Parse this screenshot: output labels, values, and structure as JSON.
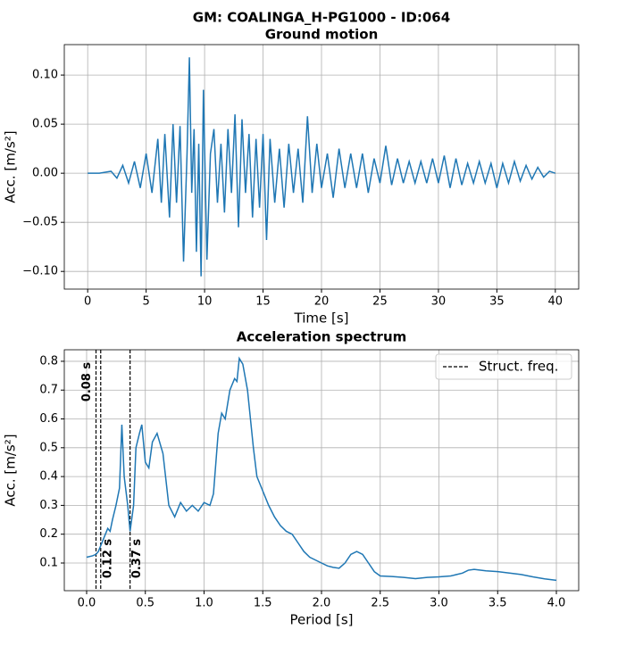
{
  "title": "GM: COALINGA_H-PG1000 - ID:064",
  "chart_data": [
    {
      "type": "line",
      "title": "Ground motion",
      "x_label": "Time [s]",
      "y_label": "Acc. [m/s²]",
      "xlim": [
        -2,
        42
      ],
      "ylim": [
        -0.118,
        0.131
      ],
      "grid": true,
      "xticks": [
        0,
        5,
        10,
        15,
        20,
        25,
        30,
        35,
        40
      ],
      "yticks": [
        {
          "value": -0.1,
          "label": "−0.10"
        },
        {
          "value": -0.05,
          "label": "−0.05"
        },
        {
          "value": 0,
          "label": "0.00"
        },
        {
          "value": 0.05,
          "label": "0.05"
        },
        {
          "value": 0.1,
          "label": "0.10"
        }
      ],
      "x": [
        0,
        1,
        2,
        2.5,
        3,
        3.5,
        4,
        4.5,
        5,
        5.5,
        6,
        6.3,
        6.6,
        7,
        7.3,
        7.6,
        7.9,
        8.2,
        8.5,
        8.7,
        8.9,
        9.1,
        9.3,
        9.5,
        9.7,
        9.9,
        10.2,
        10.5,
        10.8,
        11.1,
        11.4,
        11.7,
        12,
        12.3,
        12.6,
        12.9,
        13.2,
        13.5,
        13.8,
        14.1,
        14.4,
        14.7,
        15,
        15.3,
        15.6,
        16,
        16.4,
        16.8,
        17.2,
        17.6,
        18,
        18.4,
        18.8,
        19.2,
        19.6,
        20,
        20.5,
        21,
        21.5,
        22,
        22.5,
        23,
        23.5,
        24,
        24.5,
        25,
        25.5,
        26,
        26.5,
        27,
        27.5,
        28,
        28.5,
        29,
        29.5,
        30,
        30.5,
        31,
        31.5,
        32,
        32.5,
        33,
        33.5,
        34,
        34.5,
        35,
        35.5,
        36,
        36.5,
        37,
        37.5,
        38,
        38.5,
        39,
        39.5,
        40
      ],
      "series": [
        {
          "color": "#1f77b4",
          "values": [
            0,
            0,
            0.002,
            -0.005,
            0.008,
            -0.01,
            0.012,
            -0.015,
            0.02,
            -0.02,
            0.035,
            -0.03,
            0.04,
            -0.045,
            0.05,
            -0.03,
            0.048,
            -0.09,
            0.02,
            0.118,
            -0.02,
            0.045,
            -0.08,
            0.03,
            -0.105,
            0.085,
            -0.088,
            0.02,
            0.045,
            -0.03,
            0.03,
            -0.04,
            0.045,
            -0.02,
            0.06,
            -0.055,
            0.055,
            -0.02,
            0.04,
            -0.045,
            0.035,
            -0.035,
            0.04,
            -0.068,
            0.035,
            -0.03,
            0.025,
            -0.035,
            0.03,
            -0.02,
            0.025,
            -0.03,
            0.058,
            -0.02,
            0.03,
            -0.015,
            0.02,
            -0.025,
            0.025,
            -0.015,
            0.02,
            -0.015,
            0.02,
            -0.02,
            0.015,
            -0.01,
            0.028,
            -0.012,
            0.015,
            -0.01,
            0.012,
            -0.01,
            0.012,
            -0.01,
            0.015,
            -0.01,
            0.018,
            -0.015,
            0.015,
            -0.012,
            0.01,
            -0.01,
            0.012,
            -0.01,
            0.01,
            -0.015,
            0.01,
            -0.01,
            0.012,
            -0.008,
            0.008,
            -0.006,
            0.006,
            -0.004,
            0.002,
            0
          ]
        }
      ]
    },
    {
      "type": "line",
      "title": "Acceleration spectrum",
      "x_label": "Period [s]",
      "y_label": "Acc. [m/s²]",
      "xlim": [
        -0.19,
        4.19
      ],
      "ylim": [
        0.004,
        0.84
      ],
      "grid": true,
      "legend": "upper right",
      "xticks": [
        {
          "value": 0,
          "label": "0.0"
        },
        0.5,
        {
          "value": 1,
          "label": "1.0"
        },
        1.5,
        {
          "value": 2,
          "label": "2.0"
        },
        2.5,
        {
          "value": 3,
          "label": "3.0"
        },
        3.5,
        {
          "value": 4,
          "label": "4.0"
        }
      ],
      "yticks": [
        0.1,
        0.2,
        0.3,
        0.4,
        0.5,
        0.6,
        0.7,
        0.8
      ],
      "x": [
        0,
        0.05,
        0.08,
        0.1,
        0.12,
        0.15,
        0.18,
        0.2,
        0.22,
        0.25,
        0.28,
        0.3,
        0.32,
        0.35,
        0.37,
        0.4,
        0.42,
        0.45,
        0.47,
        0.5,
        0.53,
        0.56,
        0.6,
        0.65,
        0.7,
        0.75,
        0.8,
        0.85,
        0.9,
        0.95,
        1.0,
        1.05,
        1.08,
        1.12,
        1.15,
        1.18,
        1.22,
        1.26,
        1.28,
        1.3,
        1.33,
        1.37,
        1.42,
        1.45,
        1.5,
        1.55,
        1.6,
        1.65,
        1.7,
        1.75,
        1.8,
        1.85,
        1.9,
        2.0,
        2.05,
        2.1,
        2.15,
        2.2,
        2.25,
        2.3,
        2.35,
        2.4,
        2.45,
        2.5,
        2.6,
        2.7,
        2.8,
        2.9,
        3.0,
        3.1,
        3.2,
        3.25,
        3.3,
        3.4,
        3.5,
        3.6,
        3.7,
        3.8,
        3.9,
        4.0
      ],
      "series": [
        {
          "color": "#1f77b4",
          "values": [
            0.12,
            0.125,
            0.13,
            0.14,
            0.16,
            0.19,
            0.22,
            0.21,
            0.25,
            0.3,
            0.36,
            0.58,
            0.4,
            0.3,
            0.21,
            0.3,
            0.5,
            0.55,
            0.58,
            0.45,
            0.43,
            0.52,
            0.55,
            0.48,
            0.3,
            0.26,
            0.31,
            0.28,
            0.3,
            0.28,
            0.31,
            0.3,
            0.34,
            0.55,
            0.62,
            0.6,
            0.7,
            0.74,
            0.73,
            0.81,
            0.79,
            0.7,
            0.5,
            0.4,
            0.35,
            0.3,
            0.26,
            0.23,
            0.21,
            0.2,
            0.17,
            0.14,
            0.12,
            0.1,
            0.09,
            0.085,
            0.082,
            0.1,
            0.13,
            0.14,
            0.13,
            0.1,
            0.07,
            0.055,
            0.053,
            0.05,
            0.046,
            0.05,
            0.052,
            0.055,
            0.065,
            0.075,
            0.078,
            0.073,
            0.07,
            0.065,
            0.06,
            0.052,
            0.045,
            0.04
          ]
        }
      ],
      "vlines": {
        "name": "Struct. freq.",
        "color": "#000000",
        "lines": [
          {
            "value": 0.08,
            "label": "0.08 s"
          },
          {
            "value": 0.12,
            "label": "0.12 s"
          },
          {
            "value": 0.37,
            "label": "0.37 s"
          }
        ]
      }
    }
  ]
}
